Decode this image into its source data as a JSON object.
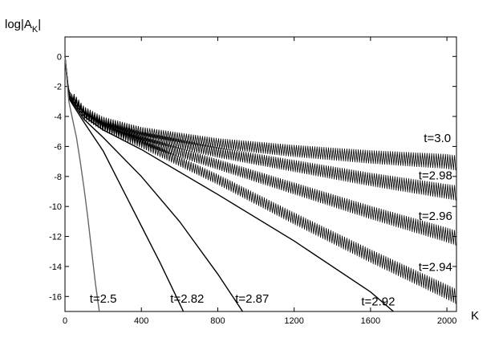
{
  "chart_data": {
    "type": "line",
    "title": "",
    "xlabel": "K",
    "ylabel": "log|A_K|",
    "xlim": [
      0,
      2050
    ],
    "ylim": [
      -17,
      1.3
    ],
    "xticks": [
      0,
      400,
      800,
      1200,
      1600,
      2000
    ],
    "yticks": [
      0,
      -2,
      -4,
      -6,
      -8,
      -10,
      -12,
      -14,
      -16
    ],
    "grid": false,
    "series": [
      {
        "name": "t=3.0",
        "x": [
          0,
          20,
          100,
          200,
          400,
          800,
          1200,
          1600,
          2000,
          2048
        ],
        "y": [
          0,
          -2.3,
          -3.6,
          -4.3,
          -5.0,
          -5.8,
          -6.3,
          -6.7,
          -7.0,
          -7.1
        ]
      },
      {
        "name": "t=2.98",
        "x": [
          0,
          20,
          100,
          200,
          400,
          800,
          1200,
          1600,
          2000,
          2048
        ],
        "y": [
          0,
          -2.4,
          -3.7,
          -4.5,
          -5.3,
          -6.4,
          -7.3,
          -8.2,
          -9.0,
          -9.1
        ]
      },
      {
        "name": "t=2.96",
        "x": [
          0,
          20,
          100,
          200,
          400,
          800,
          1200,
          1600,
          2000,
          2048
        ],
        "y": [
          0,
          -2.5,
          -3.8,
          -4.6,
          -5.6,
          -7.2,
          -8.8,
          -10.4,
          -11.9,
          -12.1
        ]
      },
      {
        "name": "t=2.94",
        "x": [
          0,
          20,
          100,
          200,
          400,
          800,
          1200,
          1600,
          2000,
          2048
        ],
        "y": [
          0,
          -2.5,
          -3.9,
          -4.7,
          -5.8,
          -8.2,
          -10.8,
          -13.3,
          -15.7,
          -16.0
        ]
      },
      {
        "name": "t=2.92",
        "x": [
          0,
          20,
          100,
          200,
          400,
          800,
          1200,
          1600,
          1720
        ],
        "y": [
          0,
          -2.6,
          -4.0,
          -4.9,
          -6.2,
          -9.2,
          -12.3,
          -15.7,
          -17.0
        ]
      },
      {
        "name": "t=2.87",
        "x": [
          0,
          20,
          100,
          200,
          400,
          600,
          800,
          930
        ],
        "y": [
          0,
          -2.7,
          -4.2,
          -5.4,
          -8.0,
          -11.0,
          -14.5,
          -17.0
        ]
      },
      {
        "name": "t=2.82",
        "x": [
          0,
          20,
          100,
          200,
          300,
          400,
          500,
          620
        ],
        "y": [
          0,
          -2.8,
          -4.4,
          -6.3,
          -8.8,
          -11.3,
          -13.8,
          -17.0
        ]
      },
      {
        "name": "t=2.5",
        "x": [
          0,
          20,
          40,
          60,
          80,
          100,
          120,
          140,
          160,
          180
        ],
        "y": [
          0,
          -3.0,
          -4.2,
          -5.4,
          -7.0,
          -8.8,
          -10.8,
          -13.0,
          -15.2,
          -17.0
        ]
      }
    ],
    "curve_labels": [
      {
        "text": "t=3.0",
        "x": 1950,
        "y": -5.7
      },
      {
        "text": "t=2.98",
        "x": 1940,
        "y": -8.2
      },
      {
        "text": "t=2.96",
        "x": 1940,
        "y": -10.9
      },
      {
        "text": "t=2.94",
        "x": 1940,
        "y": -14.3
      },
      {
        "text": "t=2.92",
        "x": 1640,
        "y": -16.6
      },
      {
        "text": "t=2.87",
        "x": 980,
        "y": -16.4
      },
      {
        "text": "t=2.82",
        "x": 640,
        "y": -16.4
      },
      {
        "text": "t=2.5",
        "x": 200,
        "y": -16.4
      }
    ],
    "oscillating_series": [
      "t=3.0",
      "t=2.98",
      "t=2.96",
      "t=2.94"
    ]
  }
}
